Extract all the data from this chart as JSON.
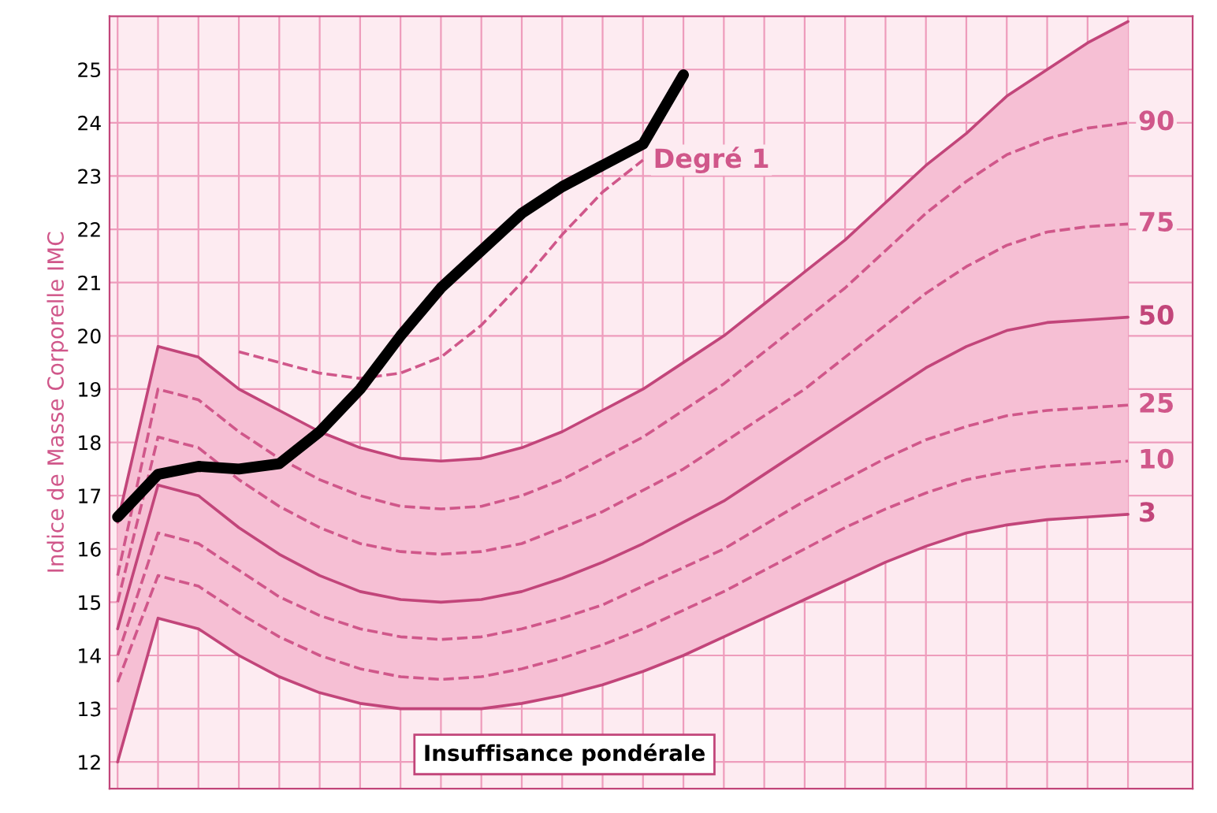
{
  "chart_data": {
    "type": "line",
    "ylabel": "Indice de Masse Corporelle IMC",
    "categories": [
      null,
      null,
      null,
      null,
      null,
      null,
      null,
      null,
      null,
      null,
      null,
      null,
      null,
      null,
      null,
      null,
      null,
      null,
      null,
      null,
      null,
      null,
      null,
      null,
      null,
      null
    ],
    "ylim": [
      11.5,
      26
    ],
    "yticks": [
      12,
      13,
      14,
      15,
      16,
      17,
      18,
      19,
      20,
      21,
      22,
      23,
      24,
      25
    ],
    "grid": true,
    "tick_labels": "y",
    "legend": false,
    "series": [
      {
        "color": "#c2457a",
        "line_style": "solid",
        "values": [
          16.5,
          19.8,
          19.6,
          19.0,
          18.6,
          18.2,
          17.9,
          17.7,
          17.65,
          17.7,
          17.9,
          18.2,
          18.6,
          19.0,
          19.5,
          20.0,
          20.6,
          21.2,
          21.8,
          22.5,
          23.2,
          23.8,
          24.5,
          25.0,
          25.5,
          25.9
        ]
      },
      {
        "name": "90",
        "color": "#d0578a",
        "line_style": "dashed",
        "values": [
          15.5,
          19.0,
          18.8,
          18.2,
          17.7,
          17.3,
          17.0,
          16.8,
          16.75,
          16.8,
          17.0,
          17.3,
          17.7,
          18.1,
          18.6,
          19.1,
          19.7,
          20.3,
          20.9,
          21.6,
          22.3,
          22.9,
          23.4,
          23.7,
          23.9,
          24.0
        ]
      },
      {
        "name": "75",
        "color": "#d0578a",
        "line_style": "dashed",
        "values": [
          15.0,
          18.1,
          17.9,
          17.3,
          16.8,
          16.4,
          16.1,
          15.95,
          15.9,
          15.95,
          16.1,
          16.4,
          16.7,
          17.1,
          17.5,
          18.0,
          18.5,
          19.0,
          19.6,
          20.2,
          20.8,
          21.3,
          21.7,
          21.95,
          22.05,
          22.1
        ]
      },
      {
        "name": "50",
        "color": "#c2457a",
        "line_style": "solid",
        "values": [
          14.5,
          17.2,
          17.0,
          16.4,
          15.9,
          15.5,
          15.2,
          15.05,
          15.0,
          15.05,
          15.2,
          15.45,
          15.75,
          16.1,
          16.5,
          16.9,
          17.4,
          17.9,
          18.4,
          18.9,
          19.4,
          19.8,
          20.1,
          20.25,
          20.3,
          20.35
        ],
        "lower": [
          12.0,
          14.7,
          14.5,
          14.0,
          13.6,
          13.3,
          13.1,
          13.0,
          13.0,
          13.0,
          13.1,
          13.25,
          13.45,
          13.7,
          14.0,
          14.35,
          14.7,
          15.05,
          15.4,
          15.75,
          16.05,
          16.3,
          16.45,
          16.55,
          16.6,
          16.65
        ],
        "upper": [
          16.5,
          19.8,
          19.6,
          19.0,
          18.6,
          18.2,
          17.9,
          17.7,
          17.65,
          17.7,
          17.9,
          18.2,
          18.6,
          19.0,
          19.5,
          20.0,
          20.6,
          21.2,
          21.8,
          22.5,
          23.2,
          23.8,
          24.5,
          25.0,
          25.5,
          25.9
        ]
      },
      {
        "name": "25",
        "color": "#d0578a",
        "line_style": "dashed",
        "values": [
          14.0,
          16.3,
          16.1,
          15.6,
          15.1,
          14.75,
          14.5,
          14.35,
          14.3,
          14.35,
          14.5,
          14.7,
          14.95,
          15.3,
          15.65,
          16.0,
          16.45,
          16.9,
          17.3,
          17.7,
          18.05,
          18.3,
          18.5,
          18.6,
          18.65,
          18.7
        ]
      },
      {
        "name": "10",
        "color": "#d0578a",
        "line_style": "dashed",
        "values": [
          13.5,
          15.5,
          15.3,
          14.8,
          14.35,
          14.0,
          13.75,
          13.6,
          13.55,
          13.6,
          13.75,
          13.95,
          14.2,
          14.5,
          14.85,
          15.2,
          15.6,
          16.0,
          16.4,
          16.75,
          17.05,
          17.3,
          17.45,
          17.55,
          17.6,
          17.65
        ]
      },
      {
        "name": "3",
        "color": "#c2457a",
        "line_style": "solid",
        "values": [
          12.0,
          14.7,
          14.5,
          14.0,
          13.6,
          13.3,
          13.1,
          13.0,
          13.0,
          13.0,
          13.1,
          13.25,
          13.45,
          13.7,
          14.0,
          14.35,
          14.7,
          15.05,
          15.4,
          15.75,
          16.05,
          16.3,
          16.45,
          16.55,
          16.6,
          16.65
        ]
      },
      {
        "name": "Degré 1",
        "color": "#d0578a",
        "line_style": "dashed",
        "values": [
          null,
          null,
          null,
          19.7,
          19.5,
          19.3,
          19.2,
          19.3,
          19.6,
          20.2,
          21.0,
          21.9,
          22.7,
          23.3,
          null,
          null,
          null,
          null,
          null,
          null,
          null,
          null,
          null,
          null,
          null,
          null
        ]
      },
      {
        "color": "#000000",
        "line_style": "solid",
        "values": [
          16.6,
          17.4,
          17.55,
          17.5,
          17.6,
          18.2,
          19.0,
          20.0,
          20.9,
          21.6,
          22.3,
          22.8,
          23.2,
          23.6,
          24.9,
          null,
          null,
          null,
          null,
          null,
          null,
          null,
          null,
          null,
          null,
          null
        ]
      }
    ],
    "annotations": [
      "Insuffisance pondérale"
    ]
  }
}
